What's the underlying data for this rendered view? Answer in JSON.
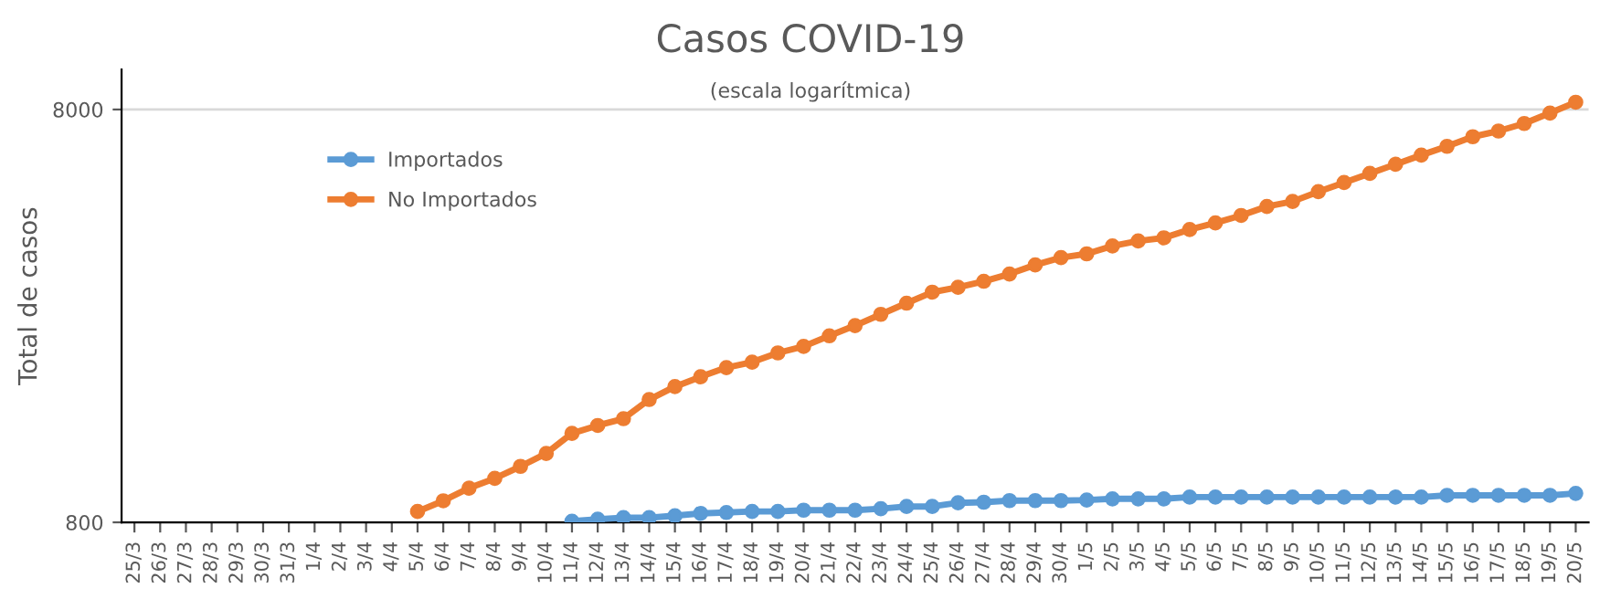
{
  "chart_data": {
    "type": "line",
    "title": "Casos COVID-19",
    "subtitle": "(escala logarítmica)",
    "ylabel": "Total de casos",
    "categories": [
      "25/3",
      "26/3",
      "27/3",
      "28/3",
      "29/3",
      "30/3",
      "31/3",
      "1/4",
      "2/4",
      "3/4",
      "4/4",
      "5/4",
      "6/4",
      "7/4",
      "8/4",
      "9/4",
      "10/4",
      "11/4",
      "12/4",
      "13/4",
      "14/4",
      "15/4",
      "16/4",
      "17/4",
      "18/4",
      "19/4",
      "20/4",
      "21/4",
      "22/4",
      "23/4",
      "24/4",
      "25/4",
      "26/4",
      "27/4",
      "28/4",
      "29/4",
      "30/4",
      "1/5",
      "2/5",
      "3/5",
      "4/5",
      "5/5",
      "6/5",
      "7/5",
      "8/5",
      "9/5",
      "10/5",
      "11/5",
      "12/5",
      "13/5",
      "14/5",
      "15/5",
      "16/5",
      "17/5",
      "18/5",
      "19/5",
      "20/5"
    ],
    "series": [
      {
        "name": "Importados",
        "color": "#5b9bd5",
        "values": [
          null,
          null,
          null,
          null,
          null,
          null,
          null,
          null,
          null,
          null,
          null,
          null,
          null,
          null,
          null,
          null,
          null,
          805,
          814,
          821,
          821,
          830,
          841,
          845,
          850,
          850,
          856,
          856,
          856,
          863,
          874,
          874,
          892,
          895,
          903,
          903,
          903,
          906,
          912,
          912,
          912,
          921,
          921,
          921,
          921,
          921,
          921,
          921,
          921,
          921,
          921,
          930,
          930,
          930,
          930,
          930,
          940
        ]
      },
      {
        "name": "No Importados",
        "color": "#ed7d31",
        "values": [
          null,
          null,
          null,
          null,
          null,
          null,
          null,
          null,
          null,
          null,
          null,
          850,
          902,
          968,
          1022,
          1093,
          1175,
          1314,
          1373,
          1426,
          1587,
          1705,
          1802,
          1896,
          1955,
          2058,
          2134,
          2264,
          2397,
          2552,
          2716,
          2888,
          2968,
          3069,
          3196,
          3362,
          3503,
          3576,
          3738,
          3842,
          3910,
          4096,
          4251,
          4430,
          4657,
          4790,
          5058,
          5323,
          5601,
          5894,
          6202,
          6514,
          6872,
          7094,
          7399,
          7843,
          8330
        ]
      }
    ],
    "log": "y",
    "ylim": [
      800,
      10000
    ],
    "yticks": [
      800,
      8000
    ],
    "grid": "y",
    "legend": "top left",
    "marker": "circle",
    "line_style": "solid"
  }
}
